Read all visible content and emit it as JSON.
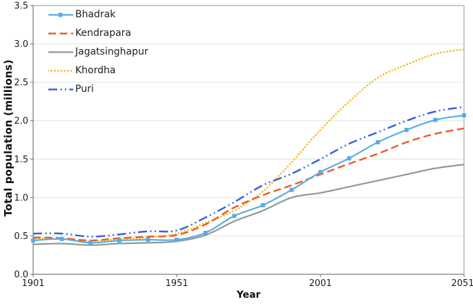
{
  "chart_data": {
    "type": "line",
    "title": "",
    "xlabel": "Year",
    "ylabel": "Total population (millions)",
    "xlim": [
      1901,
      2051
    ],
    "ylim": [
      0.0,
      3.5
    ],
    "grid": "horizontal-only",
    "legend_position": "top-left-inside",
    "x_tick_labels": [
      "1901",
      "1951",
      "2001",
      "2051"
    ],
    "x_ticks": [
      1901,
      1951,
      2001,
      2051
    ],
    "y_tick_labels": [
      "0.0",
      "0.5",
      "1.0",
      "1.5",
      "2.0",
      "2.5",
      "3.0",
      "3.5"
    ],
    "y_ticks": [
      0.0,
      0.5,
      1.0,
      1.5,
      2.0,
      2.5,
      3.0,
      3.5
    ],
    "years": [
      1901,
      1911,
      1921,
      1931,
      1941,
      1951,
      1961,
      1971,
      1981,
      1991,
      2001,
      2011,
      2021,
      2031,
      2041,
      2051
    ],
    "series": [
      {
        "name": "Bhadrak",
        "color": "#58ACE6",
        "style": "solid-square-markers",
        "values": [
          0.44,
          0.46,
          0.41,
          0.44,
          0.45,
          0.45,
          0.54,
          0.76,
          0.9,
          1.1,
          1.33,
          1.51,
          1.72,
          1.88,
          2.01,
          2.07
        ]
      },
      {
        "name": "Kendrapara",
        "color": "#E95E2E",
        "style": "dashed",
        "values": [
          0.48,
          0.47,
          0.44,
          0.47,
          0.49,
          0.51,
          0.65,
          0.87,
          1.03,
          1.16,
          1.3,
          1.44,
          1.57,
          1.72,
          1.83,
          1.9
        ]
      },
      {
        "name": "Jagatsinghapur",
        "color": "#8E9A94",
        "style": "solid",
        "values": [
          0.39,
          0.4,
          0.38,
          0.4,
          0.41,
          0.43,
          0.51,
          0.69,
          0.83,
          1.0,
          1.06,
          1.14,
          1.22,
          1.3,
          1.38,
          1.43
        ]
      },
      {
        "name": "Khordha",
        "color": "#F5BF1C",
        "style": "dotted",
        "values": [
          0.47,
          0.46,
          0.43,
          0.46,
          0.48,
          0.53,
          0.67,
          0.83,
          1.08,
          1.46,
          1.88,
          2.25,
          2.56,
          2.73,
          2.87,
          2.93
        ]
      },
      {
        "name": "Puri",
        "color": "#3763D9",
        "style": "dash-dot-dot",
        "values": [
          0.53,
          0.53,
          0.49,
          0.52,
          0.56,
          0.57,
          0.74,
          0.94,
          1.16,
          1.31,
          1.5,
          1.7,
          1.85,
          2.0,
          2.12,
          2.18
        ]
      }
    ]
  },
  "colors": {
    "axis": "#76827E",
    "frame_light": "#AFB9B5",
    "grid": "#DEE4E1",
    "tick_text": "#1c1c1c"
  }
}
